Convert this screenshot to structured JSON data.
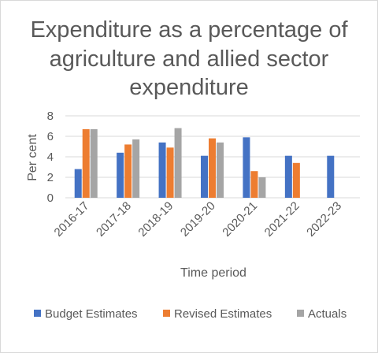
{
  "chart_data": {
    "type": "bar",
    "title_lines": [
      "Expenditure as a percentage of",
      "agriculture and allied sector",
      "expenditure"
    ],
    "xlabel": "Time period",
    "ylabel": "Per cent",
    "categories": [
      "2016-17",
      "2017-18",
      "2018-19",
      "2019-20",
      "2020-21",
      "2021-22",
      "2022-23"
    ],
    "yticks": [
      "0",
      "2",
      "4",
      "6",
      "8"
    ],
    "ylim": [
      0,
      8
    ],
    "grid": true,
    "legend_position": "bottom",
    "series": [
      {
        "name": "Budget Estimates",
        "color": "#4472C4",
        "values": [
          2.8,
          4.4,
          5.4,
          4.1,
          5.9,
          4.1,
          4.1
        ]
      },
      {
        "name": "Revised Estimates",
        "color": "#ED7D31",
        "values": [
          6.7,
          5.2,
          4.9,
          5.8,
          2.6,
          3.4,
          null
        ]
      },
      {
        "name": "Actuals",
        "color": "#A5A5A5",
        "values": [
          6.7,
          5.7,
          6.8,
          5.4,
          2.0,
          null,
          null
        ]
      }
    ]
  }
}
